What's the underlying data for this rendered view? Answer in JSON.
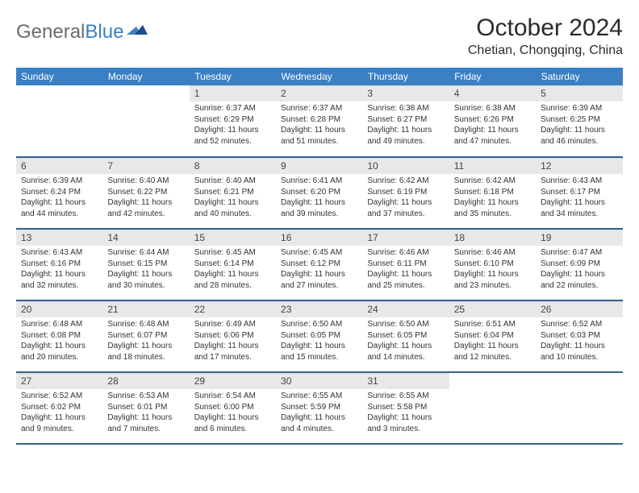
{
  "brand": {
    "part1": "General",
    "part2": "Blue"
  },
  "title": "October 2024",
  "location": "Chetian, Chongqing, China",
  "colors": {
    "header_bg": "#3b7fc4",
    "row_divider": "#35628f",
    "daynum_bg": "#e8e8e8",
    "logo_gray": "#6b6b6b",
    "logo_blue": "#3b7fc4"
  },
  "weekdays": [
    "Sunday",
    "Monday",
    "Tuesday",
    "Wednesday",
    "Thursday",
    "Friday",
    "Saturday"
  ],
  "grid": [
    [
      null,
      null,
      {
        "n": "1",
        "sr": "6:37 AM",
        "ss": "6:29 PM",
        "dl": "11 hours and 52 minutes."
      },
      {
        "n": "2",
        "sr": "6:37 AM",
        "ss": "6:28 PM",
        "dl": "11 hours and 51 minutes."
      },
      {
        "n": "3",
        "sr": "6:38 AM",
        "ss": "6:27 PM",
        "dl": "11 hours and 49 minutes."
      },
      {
        "n": "4",
        "sr": "6:38 AM",
        "ss": "6:26 PM",
        "dl": "11 hours and 47 minutes."
      },
      {
        "n": "5",
        "sr": "6:39 AM",
        "ss": "6:25 PM",
        "dl": "11 hours and 46 minutes."
      }
    ],
    [
      {
        "n": "6",
        "sr": "6:39 AM",
        "ss": "6:24 PM",
        "dl": "11 hours and 44 minutes."
      },
      {
        "n": "7",
        "sr": "6:40 AM",
        "ss": "6:22 PM",
        "dl": "11 hours and 42 minutes."
      },
      {
        "n": "8",
        "sr": "6:40 AM",
        "ss": "6:21 PM",
        "dl": "11 hours and 40 minutes."
      },
      {
        "n": "9",
        "sr": "6:41 AM",
        "ss": "6:20 PM",
        "dl": "11 hours and 39 minutes."
      },
      {
        "n": "10",
        "sr": "6:42 AM",
        "ss": "6:19 PM",
        "dl": "11 hours and 37 minutes."
      },
      {
        "n": "11",
        "sr": "6:42 AM",
        "ss": "6:18 PM",
        "dl": "11 hours and 35 minutes."
      },
      {
        "n": "12",
        "sr": "6:43 AM",
        "ss": "6:17 PM",
        "dl": "11 hours and 34 minutes."
      }
    ],
    [
      {
        "n": "13",
        "sr": "6:43 AM",
        "ss": "6:16 PM",
        "dl": "11 hours and 32 minutes."
      },
      {
        "n": "14",
        "sr": "6:44 AM",
        "ss": "6:15 PM",
        "dl": "11 hours and 30 minutes."
      },
      {
        "n": "15",
        "sr": "6:45 AM",
        "ss": "6:14 PM",
        "dl": "11 hours and 28 minutes."
      },
      {
        "n": "16",
        "sr": "6:45 AM",
        "ss": "6:12 PM",
        "dl": "11 hours and 27 minutes."
      },
      {
        "n": "17",
        "sr": "6:46 AM",
        "ss": "6:11 PM",
        "dl": "11 hours and 25 minutes."
      },
      {
        "n": "18",
        "sr": "6:46 AM",
        "ss": "6:10 PM",
        "dl": "11 hours and 23 minutes."
      },
      {
        "n": "19",
        "sr": "6:47 AM",
        "ss": "6:09 PM",
        "dl": "11 hours and 22 minutes."
      }
    ],
    [
      {
        "n": "20",
        "sr": "6:48 AM",
        "ss": "6:08 PM",
        "dl": "11 hours and 20 minutes."
      },
      {
        "n": "21",
        "sr": "6:48 AM",
        "ss": "6:07 PM",
        "dl": "11 hours and 18 minutes."
      },
      {
        "n": "22",
        "sr": "6:49 AM",
        "ss": "6:06 PM",
        "dl": "11 hours and 17 minutes."
      },
      {
        "n": "23",
        "sr": "6:50 AM",
        "ss": "6:05 PM",
        "dl": "11 hours and 15 minutes."
      },
      {
        "n": "24",
        "sr": "6:50 AM",
        "ss": "6:05 PM",
        "dl": "11 hours and 14 minutes."
      },
      {
        "n": "25",
        "sr": "6:51 AM",
        "ss": "6:04 PM",
        "dl": "11 hours and 12 minutes."
      },
      {
        "n": "26",
        "sr": "6:52 AM",
        "ss": "6:03 PM",
        "dl": "11 hours and 10 minutes."
      }
    ],
    [
      {
        "n": "27",
        "sr": "6:52 AM",
        "ss": "6:02 PM",
        "dl": "11 hours and 9 minutes."
      },
      {
        "n": "28",
        "sr": "6:53 AM",
        "ss": "6:01 PM",
        "dl": "11 hours and 7 minutes."
      },
      {
        "n": "29",
        "sr": "6:54 AM",
        "ss": "6:00 PM",
        "dl": "11 hours and 6 minutes."
      },
      {
        "n": "30",
        "sr": "6:55 AM",
        "ss": "5:59 PM",
        "dl": "11 hours and 4 minutes."
      },
      {
        "n": "31",
        "sr": "6:55 AM",
        "ss": "5:58 PM",
        "dl": "11 hours and 3 minutes."
      },
      null,
      null
    ]
  ],
  "labels": {
    "sunrise": "Sunrise:",
    "sunset": "Sunset:",
    "daylight": "Daylight:"
  }
}
